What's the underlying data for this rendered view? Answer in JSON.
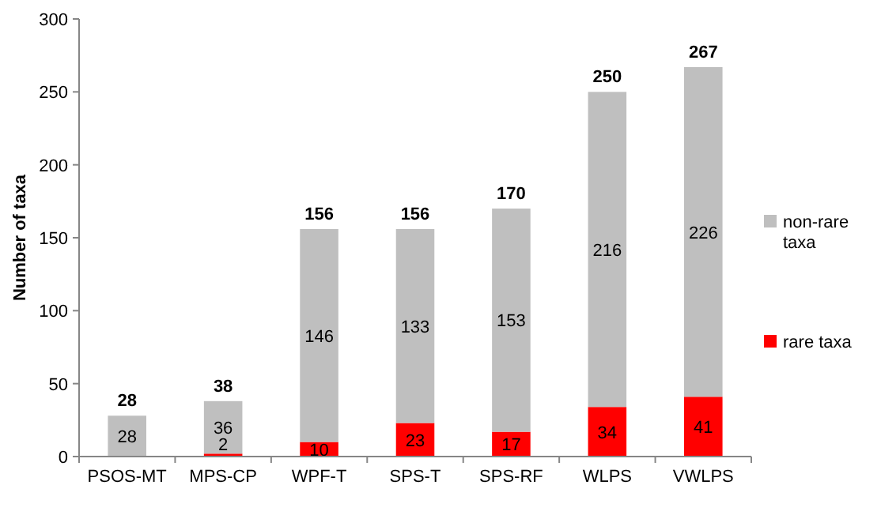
{
  "chart_data": {
    "type": "bar",
    "stacked": true,
    "ylabel": "Number of taxa",
    "categories": [
      "PSOS-MT",
      "MPS-CP",
      "WPF-T",
      "SPS-T",
      "SPS-RF",
      "WLPS",
      "VWLPS"
    ],
    "series": [
      {
        "name": "rare taxa",
        "color": "#ff0000",
        "values": [
          0,
          2,
          10,
          23,
          17,
          34,
          41
        ],
        "value_labels": [
          null,
          "2",
          "10",
          "23",
          "17",
          "34",
          "41"
        ]
      },
      {
        "name": "non-rare taxa",
        "color": "#bfbfbf",
        "values": [
          28,
          36,
          146,
          133,
          153,
          216,
          226
        ],
        "value_labels": [
          "28",
          "36",
          "146",
          "133",
          "153",
          "216",
          "226"
        ]
      }
    ],
    "totals": [
      "28",
      "38",
      "156",
      "156",
      "170",
      "250",
      "267"
    ],
    "ylim": [
      0,
      300
    ],
    "yticks": [
      0,
      50,
      100,
      150,
      200,
      250,
      300
    ],
    "grid": false,
    "legend": "right"
  }
}
